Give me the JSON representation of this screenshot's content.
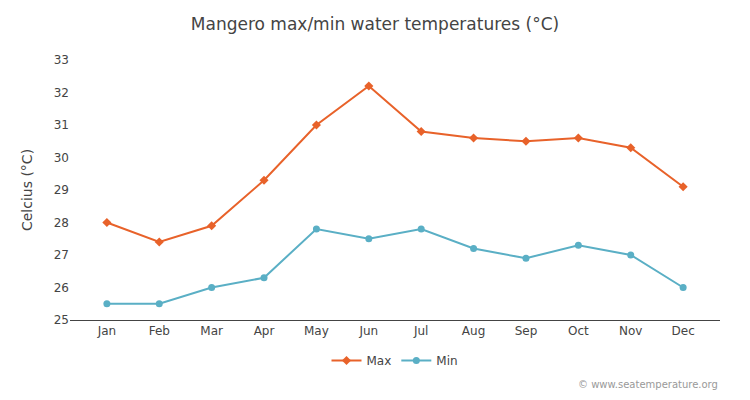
{
  "chart_data": {
    "type": "line",
    "title": "Mangero max/min water temperatures (°C)",
    "y_label": "Celcius (°C)",
    "categories": [
      "Jan",
      "Feb",
      "Mar",
      "Apr",
      "May",
      "Jun",
      "Jul",
      "Aug",
      "Sep",
      "Oct",
      "Nov",
      "Dec"
    ],
    "series": [
      {
        "name": "Max",
        "color": "#e8622a",
        "marker": "diamond",
        "values": [
          28.0,
          27.4,
          27.9,
          29.3,
          31.0,
          32.2,
          30.8,
          30.6,
          30.5,
          30.6,
          30.3,
          29.1
        ]
      },
      {
        "name": "Min",
        "color": "#5aafc5",
        "marker": "circle",
        "values": [
          25.5,
          25.5,
          26.0,
          26.3,
          27.8,
          27.5,
          27.8,
          27.2,
          26.9,
          27.3,
          27.0,
          26.0
        ]
      }
    ],
    "ylim": [
      25,
      33
    ],
    "yticks": [
      25,
      26,
      27,
      28,
      29,
      30,
      31,
      32,
      33
    ],
    "grid": false,
    "legend": "bottom",
    "annotations": [
      "© www.seatemperature.org"
    ]
  }
}
